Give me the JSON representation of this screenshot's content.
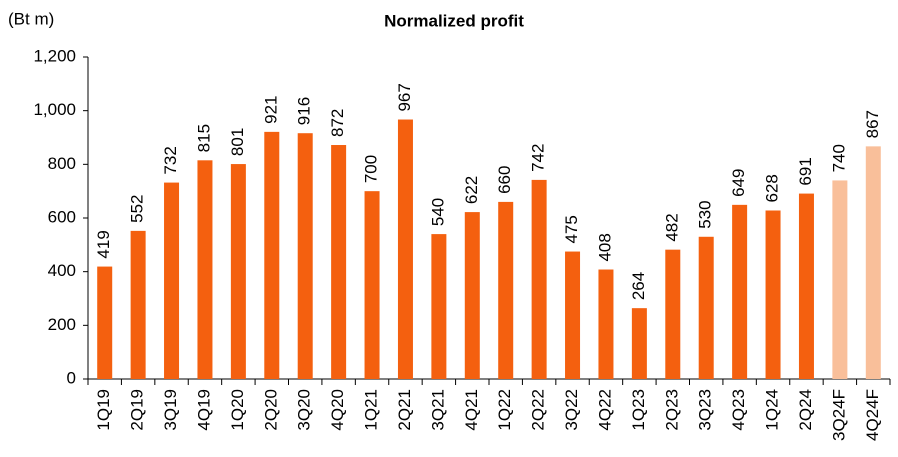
{
  "chart_data": {
    "type": "bar",
    "title": "Normalized profit",
    "y_label": "(Bt m)",
    "categories": [
      "1Q19",
      "2Q19",
      "3Q19",
      "4Q19",
      "1Q20",
      "2Q20",
      "3Q20",
      "4Q20",
      "1Q21",
      "2Q21",
      "3Q21",
      "4Q21",
      "1Q22",
      "2Q22",
      "3Q22",
      "4Q22",
      "1Q23",
      "2Q23",
      "3Q23",
      "4Q23",
      "1Q24",
      "2Q24",
      "3Q24F",
      "4Q24F"
    ],
    "values": [
      419,
      552,
      732,
      815,
      801,
      921,
      916,
      872,
      700,
      967,
      540,
      622,
      660,
      742,
      475,
      408,
      264,
      482,
      530,
      649,
      628,
      691,
      740,
      867
    ],
    "colors": [
      "#f4600f",
      "#f4600f",
      "#f4600f",
      "#f4600f",
      "#f4600f",
      "#f4600f",
      "#f4600f",
      "#f4600f",
      "#f4600f",
      "#f4600f",
      "#f4600f",
      "#f4600f",
      "#f4600f",
      "#f4600f",
      "#f4600f",
      "#f4600f",
      "#f4600f",
      "#f4600f",
      "#f4600f",
      "#f4600f",
      "#f4600f",
      "#f4600f",
      "#f9bf9a",
      "#f9bf9a"
    ],
    "ylim": [
      0,
      1200
    ],
    "yticks": [
      0,
      200,
      400,
      600,
      800,
      {
        "value": 1000,
        "label": "1,000"
      },
      {
        "value": 1200,
        "label": "1,200"
      }
    ],
    "grid": false
  }
}
